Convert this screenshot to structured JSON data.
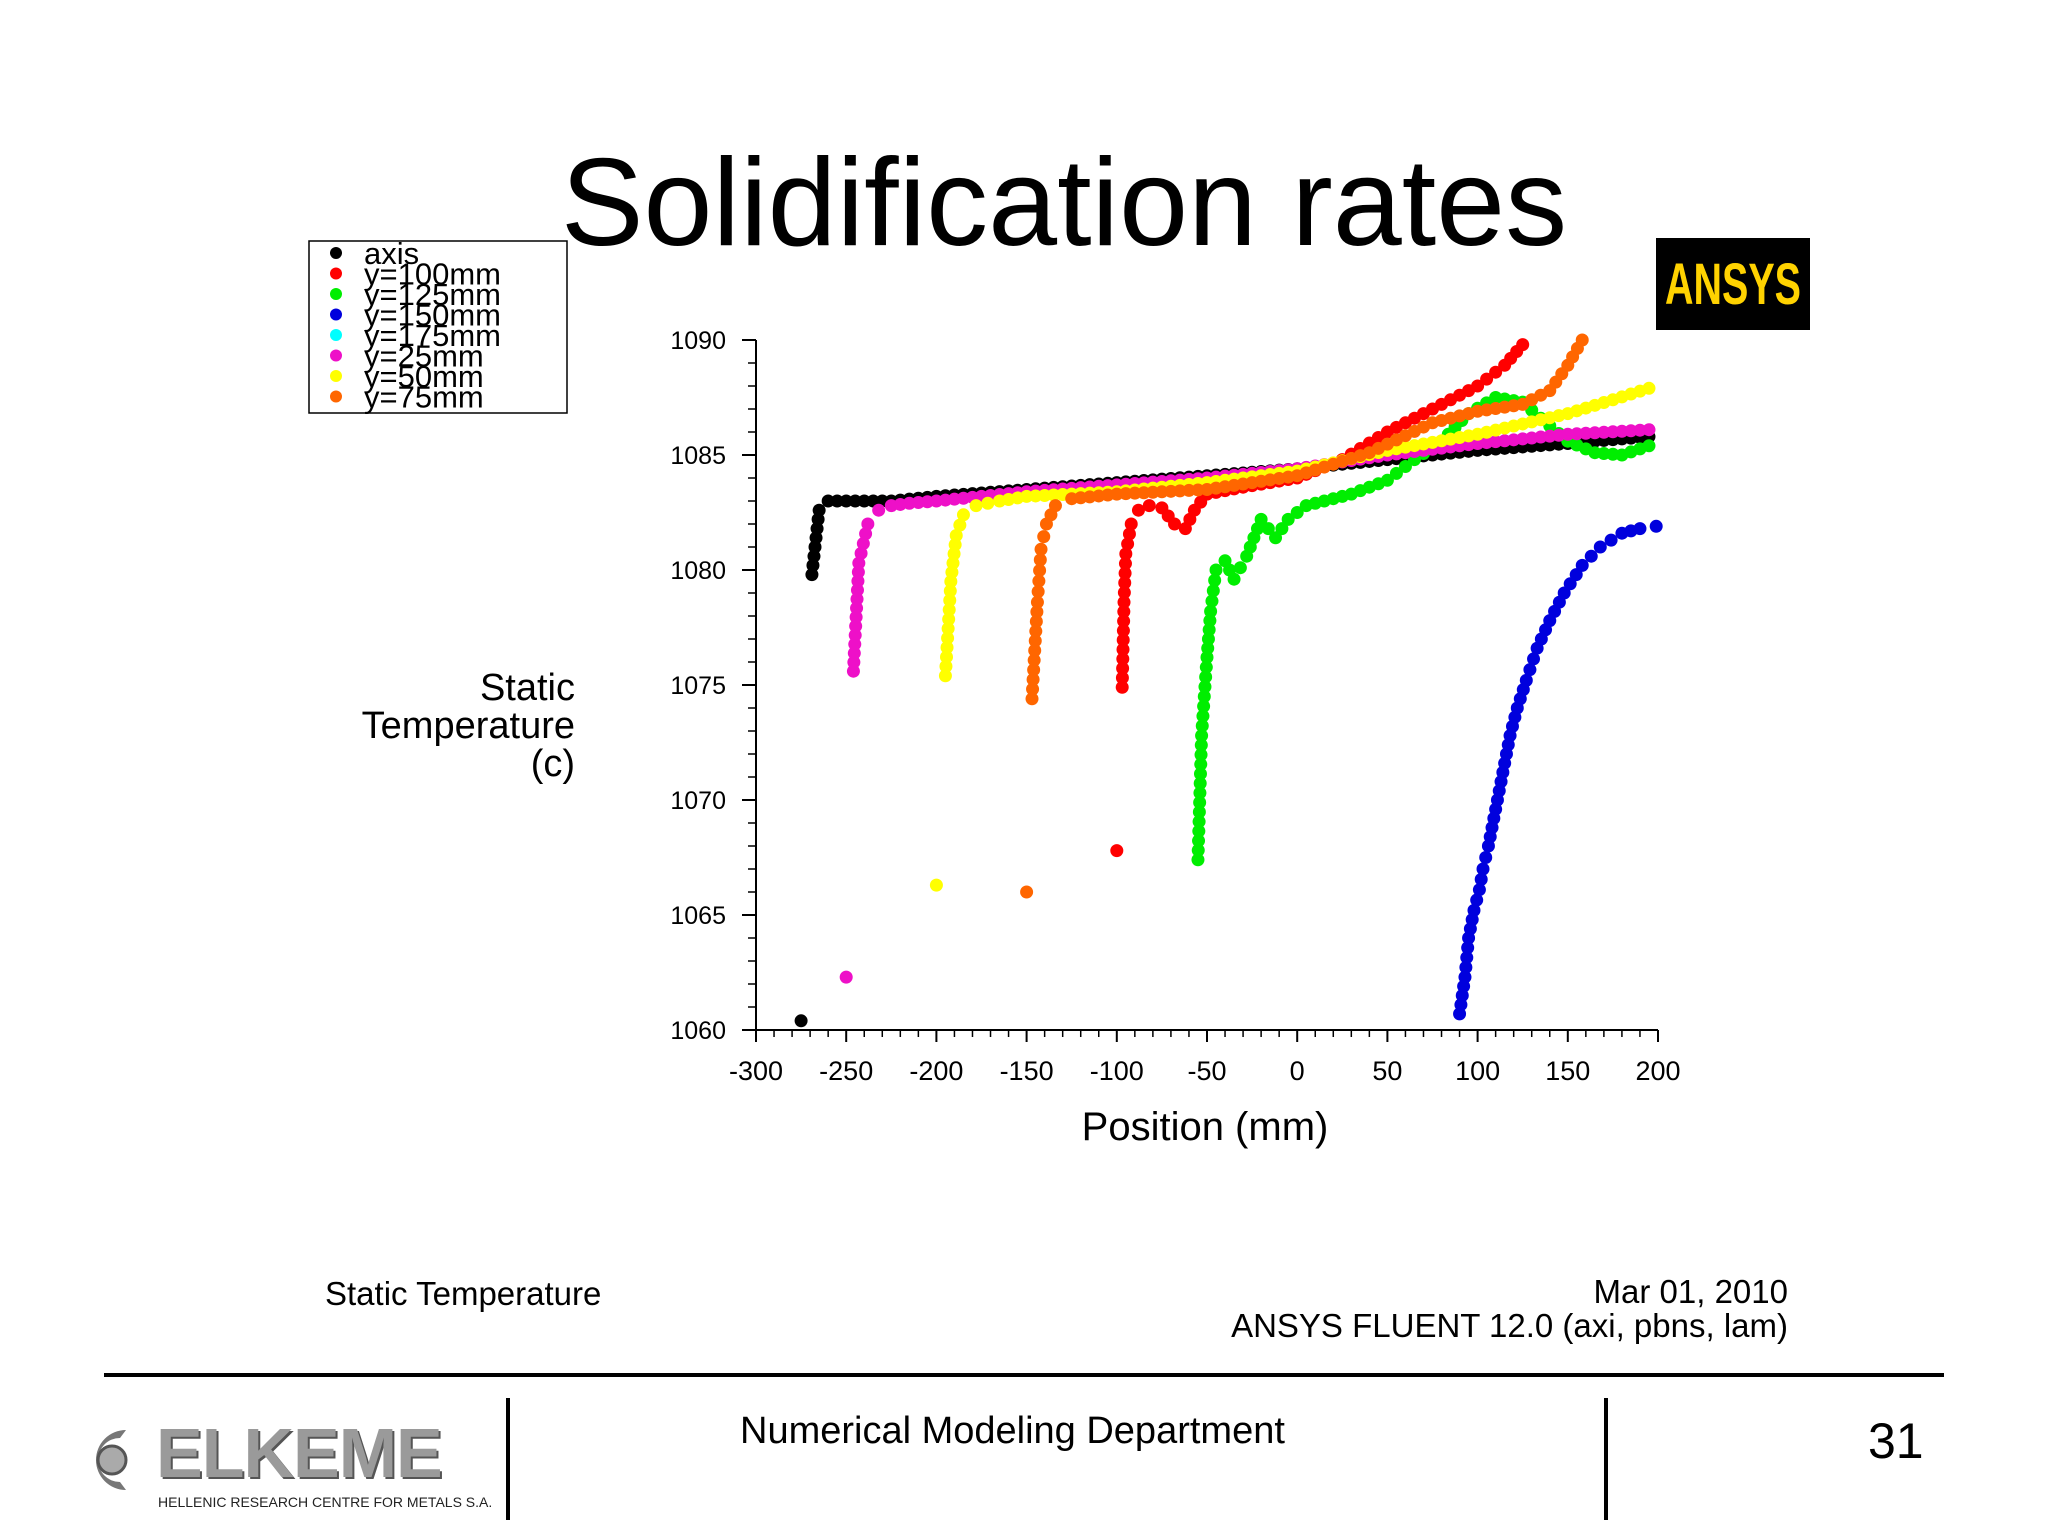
{
  "slide": {
    "title": "Solidification rates",
    "department": "Numerical Modeling Department",
    "page_number": "31"
  },
  "logos": {
    "ansys": "ANSYS",
    "elkeme_name": "ELKEME",
    "elkeme_subtitle": "HELLENIC RESEARCH CENTRE FOR METALS S.A."
  },
  "footer": {
    "left": "Static Temperature",
    "date": "Mar 01, 2010",
    "software": "ANSYS FLUENT 12.0 (axi, pbns, lam)"
  },
  "chart_data": {
    "type": "scatter",
    "title": "",
    "xlabel": "Position (mm)",
    "ylabel_lines": [
      "Static",
      "Temperature",
      "(c)"
    ],
    "xlim": [
      -300,
      200
    ],
    "ylim": [
      1060,
      1090
    ],
    "x_ticks": [
      -300,
      -250,
      -200,
      -150,
      -100,
      -50,
      0,
      50,
      100,
      150,
      200
    ],
    "y_ticks": [
      1060,
      1065,
      1070,
      1075,
      1080,
      1085,
      1090
    ],
    "grid": false,
    "legend_placement": "top-left",
    "series": [
      {
        "name": "axis",
        "color": "#000000",
        "points": [
          [
            -275,
            1060.4
          ],
          [
            -269,
            1079.8
          ],
          [
            -265,
            1082.6
          ],
          [
            -260,
            1083.0
          ],
          [
            -255,
            1083.0
          ],
          [
            -250,
            1083.0
          ],
          [
            -245,
            1083.0
          ],
          [
            -240,
            1083.0
          ],
          [
            -235,
            1083.0
          ],
          [
            -225,
            1083.0
          ],
          [
            -200,
            1083.2
          ],
          [
            -150,
            1083.5
          ],
          [
            -100,
            1083.8
          ],
          [
            -50,
            1084.1
          ],
          [
            0,
            1084.4
          ],
          [
            50,
            1084.8
          ],
          [
            100,
            1085.2
          ],
          [
            150,
            1085.5
          ],
          [
            195,
            1085.8
          ]
        ]
      },
      {
        "name": "y=100mm",
        "color": "#ff0000",
        "points": [
          [
            -100,
            1067.8
          ],
          [
            -97,
            1074.9
          ],
          [
            -96,
            1078.6
          ],
          [
            -95,
            1080.7
          ],
          [
            -92,
            1082.0
          ],
          [
            -88,
            1082.6
          ],
          [
            -82,
            1082.8
          ],
          [
            -75,
            1082.7
          ],
          [
            -68,
            1082.0
          ],
          [
            -62,
            1081.8
          ],
          [
            -57,
            1082.6
          ],
          [
            -50,
            1083.3
          ],
          [
            -30,
            1083.6
          ],
          [
            0,
            1084.0
          ],
          [
            25,
            1084.8
          ],
          [
            50,
            1086.0
          ],
          [
            75,
            1087.0
          ],
          [
            100,
            1088.0
          ],
          [
            115,
            1088.9
          ],
          [
            125,
            1089.8
          ]
        ]
      },
      {
        "name": "y=125mm",
        "color": "#00ee00",
        "points": [
          [
            -55,
            1067.4
          ],
          [
            -53,
            1072.8
          ],
          [
            -50,
            1076.2
          ],
          [
            -48,
            1078.2
          ],
          [
            -45,
            1080.0
          ],
          [
            -40,
            1080.4
          ],
          [
            -35,
            1079.6
          ],
          [
            -28,
            1080.6
          ],
          [
            -20,
            1082.2
          ],
          [
            -12,
            1081.4
          ],
          [
            -5,
            1082.2
          ],
          [
            5,
            1082.8
          ],
          [
            15,
            1083.0
          ],
          [
            30,
            1083.3
          ],
          [
            50,
            1083.9
          ],
          [
            65,
            1084.8
          ],
          [
            80,
            1085.6
          ],
          [
            95,
            1086.8
          ],
          [
            110,
            1087.5
          ],
          [
            125,
            1087.3
          ],
          [
            135,
            1086.6
          ],
          [
            150,
            1085.6
          ],
          [
            165,
            1085.1
          ],
          [
            180,
            1085.0
          ],
          [
            195,
            1085.4
          ]
        ]
      },
      {
        "name": "y=150mm",
        "color": "#0000dd",
        "points": [
          [
            90,
            1060.7
          ],
          [
            93,
            1062.3
          ],
          [
            95,
            1064.0
          ],
          [
            98,
            1065.2
          ],
          [
            101,
            1066.1
          ],
          [
            103,
            1067.0
          ],
          [
            106,
            1068.0
          ],
          [
            109,
            1069.2
          ],
          [
            112,
            1070.4
          ],
          [
            115,
            1071.6
          ],
          [
            118,
            1072.8
          ],
          [
            122,
            1074.0
          ],
          [
            127,
            1075.2
          ],
          [
            133,
            1076.6
          ],
          [
            140,
            1077.8
          ],
          [
            148,
            1079.0
          ],
          [
            158,
            1080.2
          ],
          [
            168,
            1081.0
          ],
          [
            180,
            1081.6
          ],
          [
            190,
            1081.8
          ],
          [
            199,
            1081.9
          ]
        ]
      },
      {
        "name": "y=175mm",
        "color": "#00ffff",
        "points": []
      },
      {
        "name": "y=25mm",
        "color": "#ee10c8",
        "points": [
          [
            -250,
            1062.3
          ],
          [
            -246,
            1075.6
          ],
          [
            -243,
            1080.3
          ],
          [
            -238,
            1082.0
          ],
          [
            -232,
            1082.6
          ],
          [
            -225,
            1082.8
          ],
          [
            -215,
            1082.9
          ],
          [
            -200,
            1083.0
          ],
          [
            -150,
            1083.4
          ],
          [
            -100,
            1083.7
          ],
          [
            -50,
            1084.0
          ],
          [
            0,
            1084.4
          ],
          [
            50,
            1085.0
          ],
          [
            100,
            1085.5
          ],
          [
            150,
            1085.9
          ],
          [
            195,
            1086.1
          ]
        ]
      },
      {
        "name": "y=50mm",
        "color": "#ffff00",
        "points": [
          [
            -200,
            1066.3
          ],
          [
            -195,
            1075.4
          ],
          [
            -192,
            1079.5
          ],
          [
            -189,
            1081.5
          ],
          [
            -185,
            1082.4
          ],
          [
            -178,
            1082.8
          ],
          [
            -165,
            1083.0
          ],
          [
            -150,
            1083.2
          ],
          [
            -100,
            1083.4
          ],
          [
            -50,
            1083.8
          ],
          [
            0,
            1084.3
          ],
          [
            50,
            1085.2
          ],
          [
            100,
            1085.9
          ],
          [
            150,
            1086.8
          ],
          [
            175,
            1087.4
          ],
          [
            195,
            1087.9
          ]
        ]
      },
      {
        "name": "y=75mm",
        "color": "#ff6600",
        "points": [
          [
            -150,
            1066.0
          ],
          [
            -147,
            1074.4
          ],
          [
            -144,
            1078.6
          ],
          [
            -142,
            1080.9
          ],
          [
            -139,
            1082.0
          ],
          [
            -134,
            1082.8
          ],
          [
            -125,
            1083.1
          ],
          [
            -100,
            1083.3
          ],
          [
            -50,
            1083.5
          ],
          [
            0,
            1084.1
          ],
          [
            40,
            1085.1
          ],
          [
            75,
            1086.4
          ],
          [
            100,
            1086.9
          ],
          [
            125,
            1087.2
          ],
          [
            140,
            1087.8
          ],
          [
            150,
            1088.9
          ],
          [
            158,
            1090.0
          ]
        ]
      }
    ]
  }
}
